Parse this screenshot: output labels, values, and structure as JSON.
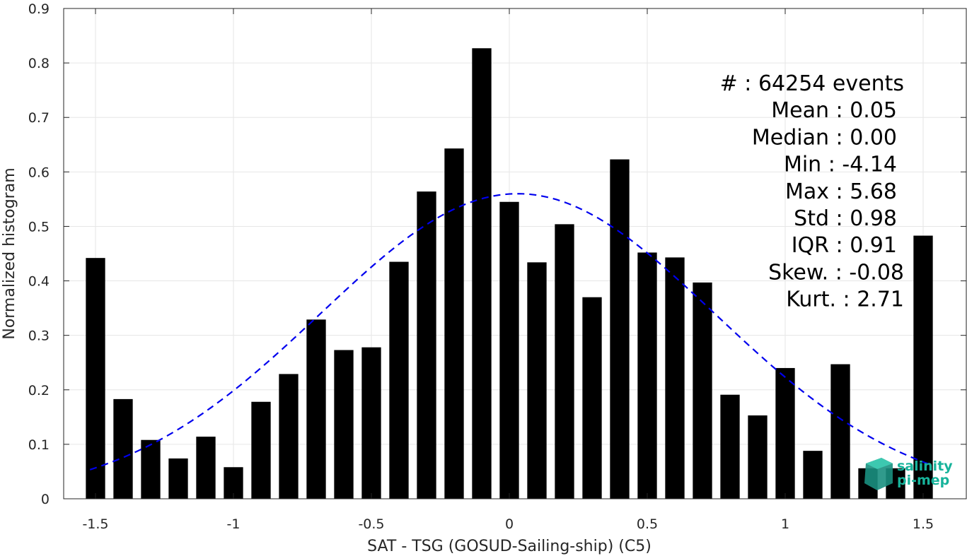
{
  "chart_data": {
    "type": "bar",
    "xlabel": "SAT - TSG (GOSUD-Sailing-ship) (C5)",
    "ylabel": "Normalized histogram",
    "xlim": [
      -1.6,
      1.6
    ],
    "ylim": [
      0,
      0.9
    ],
    "x_ticks": [
      -1.5,
      -1,
      -0.5,
      0,
      0.5,
      1,
      1.5
    ],
    "x_tick_labels": [
      "-1.5",
      "-1",
      "-0.5",
      "0",
      "0.5",
      "1",
      "1.5"
    ],
    "y_ticks": [
      0,
      0.1,
      0.2,
      0.3,
      0.4,
      0.5,
      0.6,
      0.7,
      0.8,
      0.9
    ],
    "y_tick_labels": [
      "0",
      "0.1",
      "0.2",
      "0.3",
      "0.4",
      "0.5",
      "0.6",
      "0.7",
      "0.8",
      "0.9"
    ],
    "grid": true,
    "bar_color": "#000000",
    "x": [
      -1.5,
      -1.4,
      -1.3,
      -1.2,
      -1.1,
      -1.0,
      -0.9,
      -0.8,
      -0.7,
      -0.6,
      -0.5,
      -0.4,
      -0.3,
      -0.2,
      -0.1,
      0.0,
      0.1,
      0.2,
      0.3,
      0.4,
      0.5,
      0.6,
      0.7,
      0.8,
      0.9,
      1.0,
      1.1,
      1.2,
      1.3,
      1.4,
      1.5
    ],
    "values": [
      0.442,
      0.183,
      0.108,
      0.074,
      0.114,
      0.058,
      0.178,
      0.229,
      0.329,
      0.273,
      0.278,
      0.435,
      0.564,
      0.643,
      0.827,
      0.545,
      0.434,
      0.504,
      0.37,
      0.623,
      0.452,
      0.443,
      0.397,
      0.191,
      0.153,
      0.24,
      0.088,
      0.247,
      0.056,
      0.056,
      0.483
    ],
    "fit_curve": {
      "style": "dashed",
      "color": "#0000ee",
      "mean": 0.03,
      "std": 0.715,
      "peak": 0.56,
      "x_range": [
        -1.52,
        1.52
      ]
    },
    "annotations": [
      "#  : 64254 events",
      "Mean : 0.05",
      "Median : 0.00",
      "Min : -4.14",
      "Max : 5.68",
      "Std : 0.98",
      "IQR : 0.91",
      "Skew. : -0.08",
      "Kurt. : 2.71"
    ],
    "logo": {
      "line1": "salinity",
      "line2": "pi-mep",
      "color": "#17b39b"
    }
  }
}
